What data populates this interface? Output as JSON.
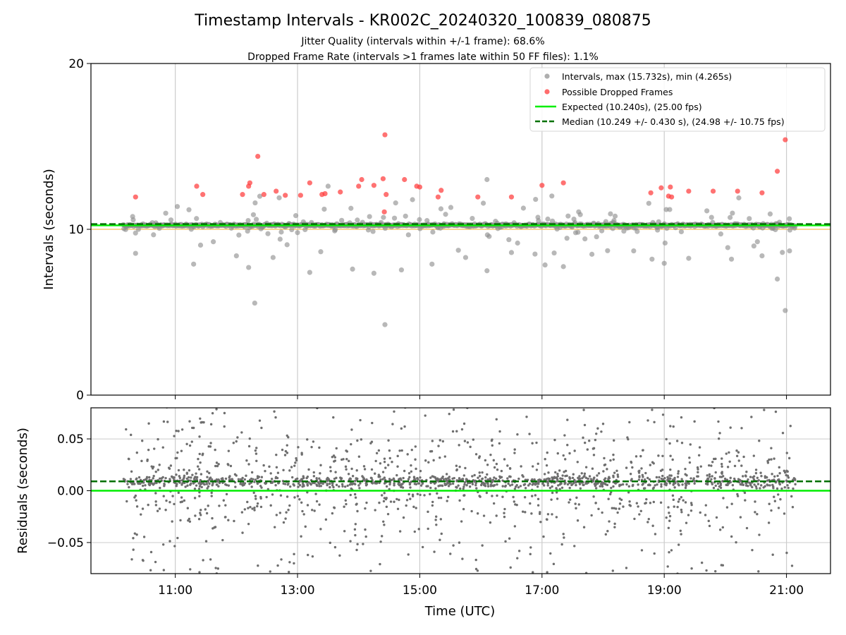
{
  "title": "Timestamp Intervals - KR002C_20240320_100839_080875",
  "subtitle_jitter": "Jitter Quality (intervals within +/-1 frame): 68.6%",
  "subtitle_dropped": "Dropped Frame Rate (intervals >1 frames late within 50 FF files): 1.1%",
  "colors": {
    "intervals": "#8c8c8c",
    "dropped": "#ff3b3b",
    "expected": "#00ee00",
    "median": "#007000",
    "tolerance": "#f2c25b",
    "residuals": "#6e6e6e",
    "grid": "#cccccc"
  },
  "chart_data": [
    {
      "type": "scatter",
      "panel": "top",
      "ylabel": "Intervals (seconds)",
      "ylim": [
        0,
        20
      ],
      "yticks": [
        0,
        10,
        20
      ],
      "ytick_labels": [
        "0",
        "10",
        "20"
      ],
      "xlim": [
        9.62,
        21.72
      ],
      "xticks": [
        11,
        13,
        15,
        17,
        19,
        21
      ],
      "grid": true,
      "legend_position": "top-right",
      "expected_value": 10.24,
      "median_value": 10.249,
      "tolerance_value": 10.0,
      "legend": [
        "Intervals, max (15.732s), min (4.265s)",
        "Possible Dropped Frames",
        "Expected (10.240s), (25.00 fps)",
        "Median (10.249 +/- 0.430 s), (24.98 +/- 10.75 fps)"
      ],
      "dropped_frames": [
        [
          10.35,
          11.95
        ],
        [
          11.35,
          12.6
        ],
        [
          11.45,
          12.1
        ],
        [
          12.1,
          12.1
        ],
        [
          12.2,
          12.6
        ],
        [
          12.22,
          12.8
        ],
        [
          12.35,
          14.4
        ],
        [
          12.45,
          12.1
        ],
        [
          12.65,
          12.3
        ],
        [
          12.8,
          12.05
        ],
        [
          13.05,
          12.05
        ],
        [
          13.2,
          12.8
        ],
        [
          13.4,
          12.1
        ],
        [
          13.45,
          12.15
        ],
        [
          13.7,
          12.25
        ],
        [
          14.0,
          12.6
        ],
        [
          14.05,
          13.0
        ],
        [
          14.25,
          12.65
        ],
        [
          14.4,
          13.05
        ],
        [
          14.42,
          11.05
        ],
        [
          14.43,
          15.7
        ],
        [
          14.45,
          12.1
        ],
        [
          14.75,
          13.0
        ],
        [
          14.95,
          12.6
        ],
        [
          15.0,
          12.55
        ],
        [
          15.3,
          11.95
        ],
        [
          15.35,
          12.35
        ],
        [
          15.95,
          11.95
        ],
        [
          16.5,
          11.95
        ],
        [
          17.0,
          12.65
        ],
        [
          17.35,
          12.8
        ],
        [
          18.78,
          12.2
        ],
        [
          18.95,
          12.5
        ],
        [
          19.07,
          12.0
        ],
        [
          19.1,
          12.55
        ],
        [
          19.12,
          11.95
        ],
        [
          19.4,
          12.3
        ],
        [
          19.8,
          12.3
        ],
        [
          20.2,
          12.3
        ],
        [
          20.6,
          12.2
        ],
        [
          20.85,
          13.5
        ],
        [
          20.98,
          15.4
        ]
      ],
      "interval_extremes": [
        [
          10.35,
          8.55
        ],
        [
          11.3,
          7.9
        ],
        [
          12.0,
          8.4
        ],
        [
          12.2,
          7.7
        ],
        [
          12.3,
          5.55
        ],
        [
          12.6,
          8.3
        ],
        [
          13.2,
          7.4
        ],
        [
          13.9,
          7.6
        ],
        [
          14.25,
          7.35
        ],
        [
          14.43,
          4.25
        ],
        [
          14.7,
          7.55
        ],
        [
          15.2,
          7.9
        ],
        [
          15.75,
          8.3
        ],
        [
          16.1,
          7.5
        ],
        [
          16.5,
          8.6
        ],
        [
          17.05,
          7.85
        ],
        [
          17.35,
          7.75
        ],
        [
          18.5,
          8.7
        ],
        [
          18.8,
          8.2
        ],
        [
          19.0,
          7.95
        ],
        [
          19.4,
          8.25
        ],
        [
          20.1,
          8.2
        ],
        [
          20.6,
          8.4
        ],
        [
          20.85,
          7.0
        ],
        [
          20.98,
          5.1
        ],
        [
          21.05,
          8.7
        ],
        [
          13.5,
          12.6
        ],
        [
          16.1,
          13.0
        ],
        [
          12.7,
          11.9
        ],
        [
          17.6,
          11.05
        ]
      ]
    },
    {
      "type": "scatter",
      "panel": "bottom",
      "ylabel": "Residuals (seconds)",
      "ylim": [
        -0.08,
        0.08
      ],
      "yticks": [
        0.05,
        0.0,
        -0.05
      ],
      "ytick_labels": [
        "0.05",
        "0.00",
        "−0.05"
      ],
      "xlabel": "Time (UTC)",
      "xlim": [
        9.62,
        21.72
      ],
      "xticks": [
        11,
        13,
        15,
        17,
        19,
        21
      ],
      "xtick_labels": [
        "11:00",
        "13:00",
        "15:00",
        "17:00",
        "19:00",
        "21:00"
      ],
      "grid": true,
      "expected_value": 0.0,
      "median_value": 0.009,
      "time_range": [
        10.15,
        21.15
      ],
      "point_count": 1900
    }
  ]
}
